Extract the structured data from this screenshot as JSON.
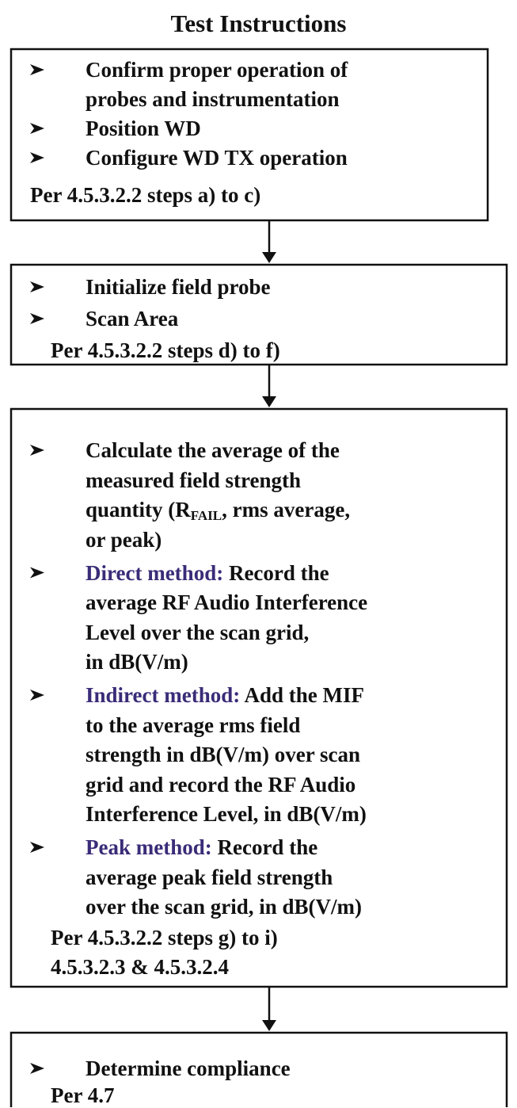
{
  "title": "Test Instructions",
  "boxes": [
    {
      "items": [
        {
          "lines": [
            "Confirm proper operation of",
            "probes and instrumentation"
          ]
        },
        {
          "lines": [
            "Position WD"
          ]
        },
        {
          "lines": [
            "Configure WD TX operation"
          ]
        }
      ],
      "reference": [
        "Per 4.5.3.2.2 steps a) to c)"
      ]
    },
    {
      "items": [
        {
          "lines": [
            "Initialize field probe"
          ]
        },
        {
          "lines": [
            "Scan Area"
          ]
        }
      ],
      "reference": [
        "Per 4.5.3.2.2 steps d) to f)"
      ]
    },
    {
      "items": [
        {
          "lines": [
            "Calculate the average of the",
            "measured field strength",
            {
              "text": "quantity (R",
              "sub": "FAIL",
              "after": ", rms average,"
            },
            "or peak)"
          ]
        },
        {
          "label": "Direct method:",
          "lines": [
            "Record the",
            "average RF Audio Interference",
            "Level over the scan grid,",
            "in dB(V/m)"
          ]
        },
        {
          "label": "Indirect method:",
          "lines": [
            "Add the MIF",
            "to the average rms field",
            "strength in dB(V/m) over scan",
            "grid and record the RF Audio",
            "Interference Level, in dB(V/m)"
          ]
        },
        {
          "label": "Peak method:",
          "lines": [
            "Record the",
            "average peak field strength",
            "over the scan grid, in dB(V/m)"
          ]
        }
      ],
      "reference": [
        "Per 4.5.3.2.2 steps g) to i)",
        "4.5.3.2.3 & 4.5.3.2.4"
      ]
    },
    {
      "items": [
        {
          "lines": [
            "Determine compliance"
          ]
        }
      ],
      "reference": [
        "Per 4.7"
      ]
    }
  ]
}
